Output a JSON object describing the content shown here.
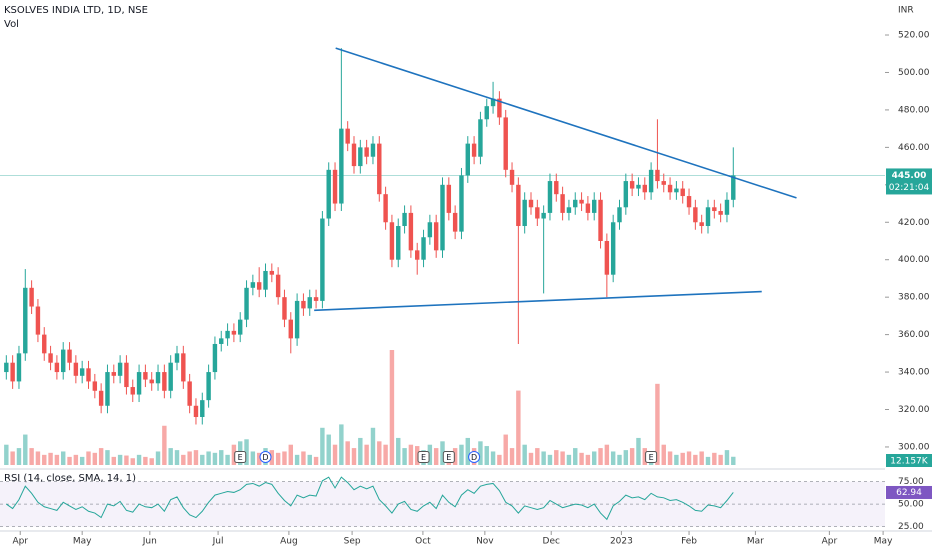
{
  "chart_data": {
    "type": "candlestick",
    "title": "KSOLVES INDIA LTD, 1D, NSE",
    "volume_title": "Vol",
    "currency": "INR",
    "up_color": "#26a69a",
    "down_color": "#ef5350",
    "open": [
      340,
      345,
      335,
      350,
      385,
      375,
      360,
      350,
      345,
      340,
      352,
      345,
      338,
      342,
      335,
      330,
      322,
      340,
      338,
      345,
      332,
      328,
      340,
      336,
      334,
      340,
      330,
      345,
      350,
      335,
      322,
      316,
      325,
      340,
      355,
      358,
      362,
      360,
      368,
      385,
      388,
      384,
      394,
      392,
      380,
      368,
      358,
      378,
      374,
      380,
      378,
      422,
      448,
      430,
      470,
      462,
      450,
      460,
      455,
      462,
      435,
      420,
      400,
      418,
      425,
      405,
      400,
      412,
      420,
      405,
      440,
      425,
      415,
      445,
      462,
      455,
      475,
      482,
      486,
      476,
      448,
      440,
      418,
      432,
      428,
      422,
      425,
      442,
      435,
      425,
      428,
      432,
      430,
      425,
      432,
      410,
      392,
      420,
      428,
      442,
      438,
      440,
      436,
      448,
      442,
      440,
      436,
      438,
      434,
      428,
      420,
      418,
      428,
      426,
      424,
      432
    ],
    "high": [
      349,
      349,
      354,
      395,
      389,
      379,
      364,
      354,
      349,
      356,
      356,
      349,
      346,
      346,
      339,
      334,
      344,
      344,
      349,
      349,
      336,
      344,
      344,
      340,
      344,
      344,
      349,
      354,
      354,
      339,
      326,
      329,
      344,
      359,
      362,
      366,
      366,
      372,
      389,
      392,
      396,
      398,
      398,
      396,
      384,
      372,
      382,
      382,
      384,
      384,
      426,
      452,
      452,
      513,
      474,
      466,
      464,
      464,
      466,
      466,
      439,
      424,
      422,
      429,
      429,
      409,
      416,
      424,
      424,
      444,
      444,
      429,
      449,
      466,
      466,
      479,
      486,
      495,
      490,
      480,
      452,
      444,
      436,
      436,
      432,
      429,
      446,
      446,
      439,
      432,
      436,
      436,
      434,
      436,
      436,
      414,
      424,
      432,
      446,
      446,
      444,
      444,
      452,
      475,
      446,
      444,
      442,
      442,
      438,
      432,
      424,
      432,
      432,
      430,
      436,
      460
    ],
    "low": [
      336,
      331,
      331,
      346,
      371,
      356,
      346,
      341,
      336,
      336,
      341,
      334,
      334,
      331,
      326,
      318,
      318,
      334,
      334,
      328,
      324,
      324,
      332,
      330,
      330,
      326,
      326,
      341,
      331,
      318,
      312,
      312,
      321,
      336,
      351,
      354,
      356,
      356,
      364,
      381,
      380,
      380,
      388,
      376,
      364,
      350,
      354,
      370,
      370,
      374,
      374,
      418,
      426,
      426,
      458,
      446,
      446,
      451,
      451,
      431,
      416,
      396,
      396,
      414,
      401,
      392,
      396,
      408,
      401,
      401,
      421,
      411,
      411,
      441,
      451,
      451,
      471,
      478,
      472,
      444,
      436,
      355,
      414,
      424,
      418,
      382,
      421,
      431,
      421,
      421,
      424,
      426,
      421,
      421,
      406,
      380,
      388,
      416,
      424,
      434,
      434,
      432,
      432,
      438,
      436,
      432,
      432,
      430,
      424,
      416,
      414,
      414,
      422,
      420,
      420,
      428
    ],
    "close": [
      345,
      335,
      350,
      385,
      375,
      360,
      350,
      345,
      340,
      352,
      345,
      338,
      342,
      335,
      330,
      322,
      340,
      338,
      345,
      332,
      328,
      340,
      336,
      334,
      340,
      330,
      345,
      350,
      335,
      322,
      316,
      325,
      340,
      355,
      358,
      362,
      360,
      368,
      385,
      388,
      384,
      394,
      392,
      380,
      368,
      358,
      378,
      374,
      380,
      378,
      422,
      448,
      430,
      470,
      462,
      450,
      460,
      455,
      462,
      435,
      420,
      400,
      418,
      425,
      405,
      400,
      412,
      420,
      405,
      440,
      425,
      415,
      445,
      462,
      455,
      475,
      482,
      486,
      476,
      448,
      440,
      418,
      432,
      428,
      422,
      425,
      442,
      435,
      425,
      428,
      432,
      430,
      425,
      432,
      410,
      392,
      420,
      428,
      442,
      438,
      440,
      436,
      448,
      442,
      440,
      436,
      438,
      434,
      428,
      420,
      418,
      428,
      426,
      424,
      432,
      445
    ],
    "volume": [
      30,
      20,
      25,
      45,
      25,
      20,
      15,
      18,
      15,
      20,
      12,
      15,
      12,
      20,
      18,
      25,
      22,
      12,
      15,
      14,
      10,
      15,
      12,
      10,
      20,
      58,
      25,
      22,
      15,
      20,
      22,
      15,
      20,
      18,
      22,
      15,
      30,
      35,
      38,
      20,
      18,
      25,
      22,
      18,
      20,
      30,
      15,
      20,
      15,
      12,
      55,
      45,
      30,
      60,
      35,
      25,
      40,
      30,
      55,
      35,
      30,
      170,
      40,
      25,
      30,
      28,
      22,
      30,
      25,
      35,
      20,
      25,
      30,
      40,
      25,
      35,
      28,
      20,
      15,
      45,
      25,
      110,
      30,
      18,
      25,
      20,
      15,
      22,
      20,
      15,
      25,
      18,
      15,
      20,
      25,
      30,
      20,
      15,
      22,
      25,
      40,
      25,
      20,
      120,
      30,
      20,
      15,
      18,
      20,
      15,
      20,
      12,
      18,
      15,
      22,
      12.157
    ],
    "volume_label": {
      "value": 12.157,
      "label": "12.157K"
    },
    "last_price": {
      "value": 445,
      "label": "445.00"
    },
    "countdown": "02:21:04",
    "xlim": [
      -1,
      139
    ],
    "xticks": [
      {
        "value": 2.2,
        "label": "Apr"
      },
      {
        "value": 12,
        "label": "May"
      },
      {
        "value": 22.7,
        "label": "Jun"
      },
      {
        "value": 33.5,
        "label": "Jul"
      },
      {
        "value": 44.7,
        "label": "Aug"
      },
      {
        "value": 54.7,
        "label": "Sep"
      },
      {
        "value": 65.9,
        "label": "Oct"
      },
      {
        "value": 75.7,
        "label": "Nov"
      },
      {
        "value": 86.2,
        "label": "Dec"
      },
      {
        "value": 97.3,
        "label": "2023"
      },
      {
        "value": 108,
        "label": "Feb"
      },
      {
        "value": 118.5,
        "label": "Mar"
      },
      {
        "value": 130.2,
        "label": "Apr"
      },
      {
        "value": 138.7,
        "label": "May"
      }
    ],
    "ylim": [
      289.3,
      538.7
    ],
    "yticks": [
      {
        "value": 300,
        "label": "300.00"
      },
      {
        "value": 320,
        "label": "320.00"
      },
      {
        "value": 340,
        "label": "340.00"
      },
      {
        "value": 360,
        "label": "360.00"
      },
      {
        "value": 380,
        "label": "380.00"
      },
      {
        "value": 400,
        "label": "400.00"
      },
      {
        "value": 420,
        "label": "420.00"
      },
      {
        "value": 440,
        "label": "440.00"
      },
      {
        "value": 460,
        "label": "460.00"
      },
      {
        "value": 480,
        "label": "480.00"
      },
      {
        "value": 500,
        "label": "500.00"
      },
      {
        "value": 520,
        "label": "520.00"
      }
    ],
    "trendlines": [
      {
        "color": "#1e73be",
        "points": [
          [
            52.1,
            513
          ],
          [
            125,
            433
          ]
        ]
      },
      {
        "color": "#1e73be",
        "points": [
          [
            48.7,
            373
          ],
          [
            119.5,
            383
          ]
        ]
      }
    ],
    "events": [
      {
        "label": "E",
        "x": 37
      },
      {
        "label": "D",
        "x": 41
      },
      {
        "label": "E",
        "x": 66
      },
      {
        "label": "E",
        "x": 70
      },
      {
        "label": "D",
        "x": 74
      },
      {
        "label": "E",
        "x": 102
      }
    ],
    "rsi": {
      "title": "RSI (14, close, SMA, 14, 1)",
      "color": "#7e57c2",
      "values": [
        50,
        45,
        55,
        70,
        62,
        52,
        47,
        45,
        43,
        52,
        48,
        44,
        47,
        42,
        40,
        35,
        50,
        48,
        53,
        43,
        41,
        50,
        47,
        46,
        50,
        42,
        55,
        58,
        46,
        38,
        35,
        42,
        52,
        60,
        62,
        64,
        63,
        66,
        72,
        73,
        70,
        74,
        72,
        62,
        54,
        48,
        60,
        57,
        60,
        59,
        76,
        80,
        68,
        80,
        74,
        66,
        70,
        67,
        70,
        55,
        48,
        40,
        50,
        53,
        44,
        42,
        48,
        52,
        45,
        60,
        52,
        47,
        60,
        66,
        62,
        70,
        72,
        73,
        65,
        52,
        48,
        40,
        48,
        46,
        44,
        46,
        54,
        50,
        46,
        48,
        50,
        49,
        46,
        50,
        40,
        33,
        48,
        53,
        60,
        57,
        58,
        55,
        62,
        58,
        57,
        54,
        55,
        52,
        48,
        43,
        42,
        49,
        48,
        46,
        54,
        62.94
      ],
      "ylim": [
        20,
        88
      ],
      "yticks": [
        {
          "value": 25,
          "label": "25.00"
        },
        {
          "value": 50,
          "label": "50.00"
        },
        {
          "value": 75,
          "label": "75.00"
        }
      ],
      "last": {
        "value": 62.94,
        "label": "62.94"
      }
    }
  }
}
